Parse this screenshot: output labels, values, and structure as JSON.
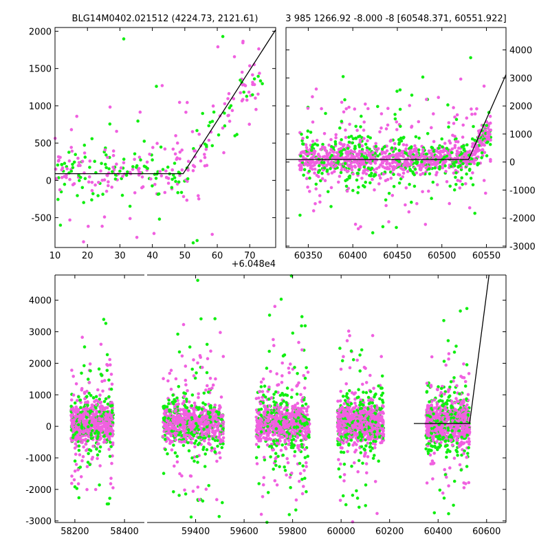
{
  "figure": {
    "title_left": "BLG14M0402.021512 (4224.73, 2121.61)",
    "title_right": "3 985 1266.92 -8.000 -8 [60548.371, 60551.922]",
    "offset_label": "+6.048e4"
  },
  "colors": {
    "series_a": "#f060e0",
    "series_b": "#11ee11",
    "model": "#000000"
  },
  "chart_data": [
    {
      "type": "scatter",
      "panel": "top-left",
      "xlim": [
        10,
        78
      ],
      "ylim": [
        -900,
        2050
      ],
      "xticks": [
        "10",
        "20",
        "30",
        "40",
        "50",
        "60",
        "70"
      ],
      "yticks": [
        "-500",
        "0",
        "500",
        "1000",
        "1500",
        "2000"
      ],
      "x_offset": 60480,
      "grid": false,
      "series": [
        {
          "color": "#f060e0"
        },
        {
          "color": "#11ee11"
        }
      ],
      "model_line": {
        "x": [
          10,
          49.5,
          78
        ],
        "y": [
          90,
          90,
          2020
        ]
      }
    },
    {
      "type": "scatter",
      "panel": "top-right",
      "xlim": [
        60325,
        60572
      ],
      "ylim": [
        -3050,
        4800
      ],
      "xticks": [
        "60350",
        "60400",
        "60450",
        "60500",
        "60550"
      ],
      "yticks": [
        "-3000",
        "-2000",
        "-1000",
        "0",
        "1000",
        "2000",
        "3000",
        "4000"
      ],
      "y_axis_side": "right",
      "grid": false,
      "series": [
        {
          "color": "#f060e0"
        },
        {
          "color": "#11ee11"
        }
      ],
      "model_line": {
        "x": [
          60325,
          60530,
          60572
        ],
        "y": [
          90,
          90,
          3120
        ]
      }
    },
    {
      "type": "scatter",
      "panel": "bottom",
      "axis_break": true,
      "segments": [
        {
          "xlim": [
            58120,
            58480
          ],
          "xticks": [
            "58200",
            "58400"
          ]
        },
        {
          "xlim": [
            59200,
            60680
          ],
          "xticks": [
            "59400",
            "59600",
            "59800",
            "60000",
            "60200",
            "60400",
            "60600"
          ]
        }
      ],
      "ylim": [
        -3050,
        4800
      ],
      "yticks": [
        "-3000",
        "-2000",
        "-1000",
        "0",
        "1000",
        "2000",
        "3000",
        "4000"
      ],
      "grid": false,
      "seasons": [
        {
          "center": 58270,
          "halfwidth": 85
        },
        {
          "center": 59390,
          "halfwidth": 125
        },
        {
          "center": 59760,
          "halfwidth": 110
        },
        {
          "center": 60080,
          "halfwidth": 95
        },
        {
          "center": 60440,
          "halfwidth": 90
        }
      ],
      "series": [
        {
          "color": "#f060e0"
        },
        {
          "color": "#11ee11"
        }
      ],
      "model_line": {
        "x": [
          60300,
          60530,
          60610
        ],
        "y": [
          90,
          90,
          4800
        ]
      }
    }
  ]
}
